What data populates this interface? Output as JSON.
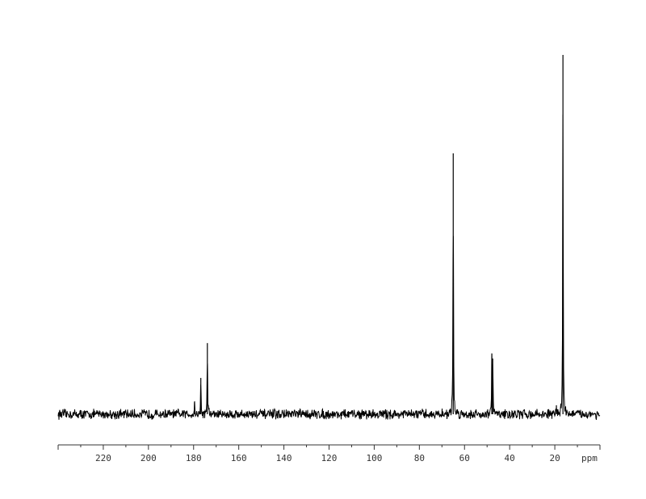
{
  "chart_data": {
    "type": "line",
    "title": "",
    "xlabel": "ppm",
    "ylabel": "",
    "xlim": [
      240,
      0
    ],
    "x_reversed": true,
    "x_ticks": [
      220,
      200,
      180,
      160,
      140,
      120,
      100,
      80,
      60,
      40,
      20
    ],
    "x_tick_labels": [
      "220",
      "200",
      "180",
      "160",
      "140",
      "120",
      "100",
      "80",
      "60",
      "40",
      "20"
    ],
    "grid": false,
    "line_color": "#000000",
    "peaks": [
      {
        "ppm": 179.6,
        "intensity": 3.4
      },
      {
        "ppm": 176.8,
        "intensity": 10.1
      },
      {
        "ppm": 173.9,
        "intensity": 19.8
      },
      {
        "ppm": 65.0,
        "intensity": 72.6
      },
      {
        "ppm": 47.9,
        "intensity": 16.9
      },
      {
        "ppm": 47.5,
        "intensity": 15.5
      },
      {
        "ppm": 19.3,
        "intensity": 2.5
      },
      {
        "ppm": 16.4,
        "intensity": 100
      }
    ]
  }
}
